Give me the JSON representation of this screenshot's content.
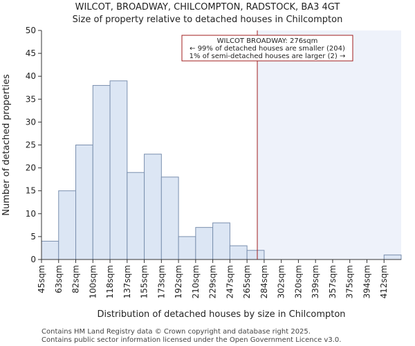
{
  "chart_data": {
    "type": "bar",
    "title": "WILCOT, BROADWAY, CHILCOMPTON, RADSTOCK, BA3 4GT",
    "subtitle": "Size of property relative to detached houses in Chilcompton",
    "xlabel": "Distribution of detached houses by size in Chilcompton",
    "ylabel": "Number of detached properties",
    "categories": [
      "45sqm",
      "63sqm",
      "82sqm",
      "100sqm",
      "118sqm",
      "137sqm",
      "155sqm",
      "173sqm",
      "192sqm",
      "210sqm",
      "229sqm",
      "247sqm",
      "265sqm",
      "284sqm",
      "302sqm",
      "320sqm",
      "339sqm",
      "357sqm",
      "375sqm",
      "394sqm",
      "412sqm"
    ],
    "values": [
      4,
      15,
      25,
      38,
      39,
      19,
      23,
      18,
      5,
      7,
      8,
      3,
      2,
      0,
      0,
      0,
      0,
      0,
      0,
      0,
      1
    ],
    "ylim": [
      0,
      50
    ],
    "yticks": [
      0,
      5,
      10,
      15,
      20,
      25,
      30,
      35,
      40,
      45,
      50
    ],
    "marker_bin_position": 12.6,
    "colors": {
      "bar_fill": "#dce6f4",
      "bar_stroke": "#7a8fae",
      "marker": "#a01c1c",
      "highlight_region": "#eef2fa"
    },
    "annotation": {
      "line1": "WILCOT BROADWAY: 276sqm",
      "line2": "← 99% of detached houses are smaller (204)",
      "line3": "1% of semi-detached houses are larger (2) →"
    }
  },
  "footer": {
    "line1": "Contains HM Land Registry data © Crown copyright and database right 2025.",
    "line2": "Contains public sector information licensed under the Open Government Licence v3.0."
  }
}
